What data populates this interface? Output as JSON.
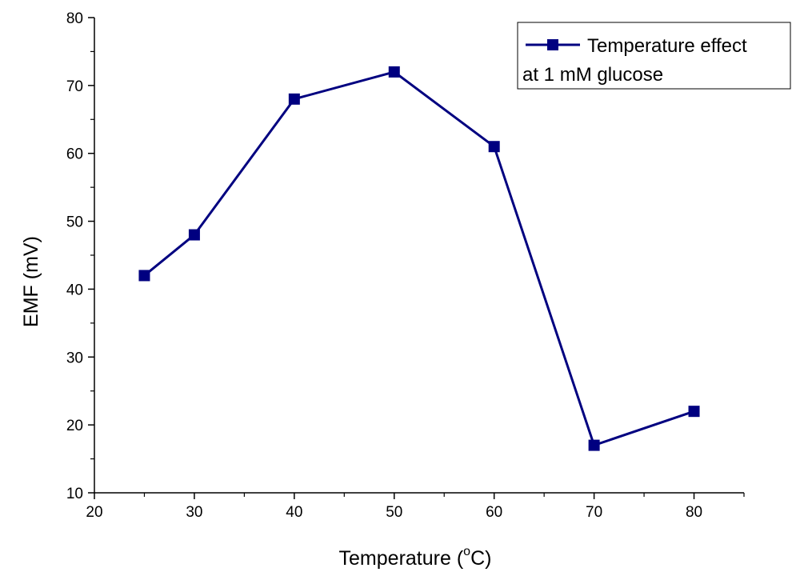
{
  "chart_data": {
    "type": "line",
    "title": "",
    "xlabel_main": "Temperature (",
    "xlabel_degree": "o",
    "xlabel_tail": "C)",
    "ylabel": "EMF (mV)",
    "xlim": [
      20,
      85
    ],
    "ylim": [
      10,
      80
    ],
    "x_ticks": [
      20,
      30,
      40,
      50,
      60,
      70,
      80
    ],
    "y_ticks": [
      10,
      20,
      30,
      40,
      50,
      60,
      70,
      80
    ],
    "series": [
      {
        "name": "Temperature effect at 1 mM glucose",
        "legend_line1": "Temperature effect",
        "legend_line2": "at 1 mM glucose",
        "color": "#000080",
        "marker": "square",
        "x": [
          25,
          30,
          40,
          50,
          60,
          70,
          80
        ],
        "y": [
          42,
          48,
          68,
          72,
          61,
          17,
          22
        ]
      }
    ],
    "legend_position": "top-right"
  }
}
